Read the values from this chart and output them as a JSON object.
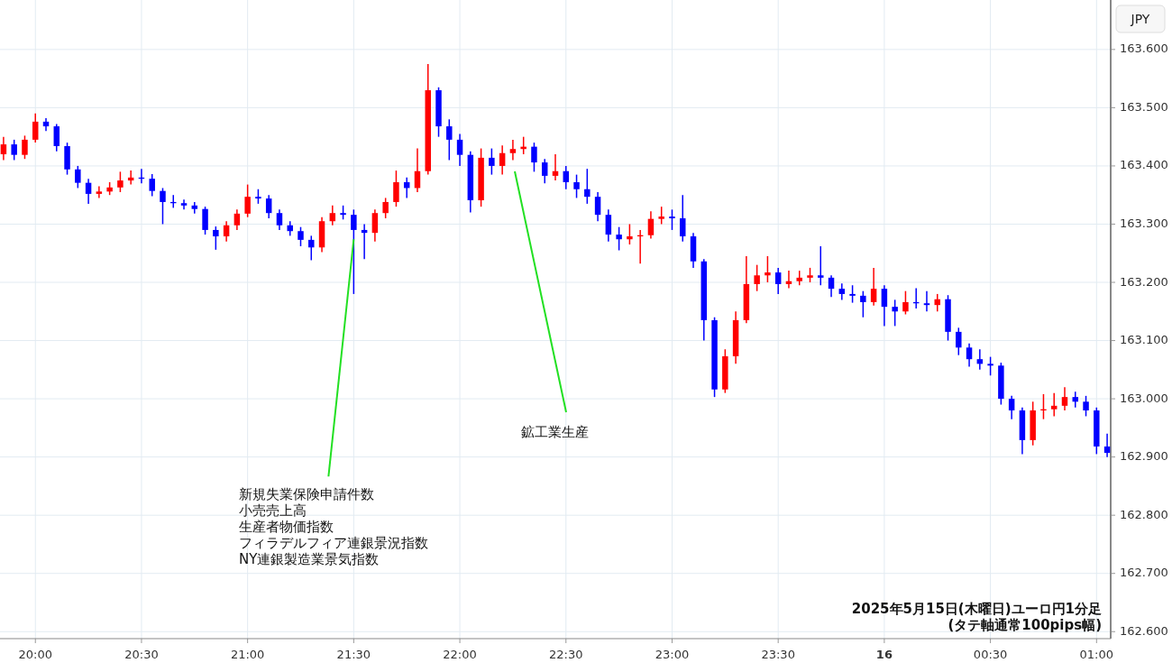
{
  "chart_data": {
    "type": "candlestick",
    "ylabel": "JPY",
    "x": [
      "2025-05-15T19:51",
      "2025-05-15T19:54",
      "2025-05-15T19:57",
      "2025-05-15T20:00",
      "2025-05-15T20:03",
      "2025-05-15T20:06",
      "2025-05-15T20:09",
      "2025-05-15T20:12",
      "2025-05-15T20:15",
      "2025-05-15T20:18",
      "2025-05-15T20:21",
      "2025-05-15T20:24",
      "2025-05-15T20:27",
      "2025-05-15T20:30",
      "2025-05-15T20:33",
      "2025-05-15T20:36",
      "2025-05-15T20:39",
      "2025-05-15T20:42",
      "2025-05-15T20:45",
      "2025-05-15T20:48",
      "2025-05-15T20:51",
      "2025-05-15T20:54",
      "2025-05-15T20:57",
      "2025-05-15T21:00",
      "2025-05-15T21:03",
      "2025-05-15T21:06",
      "2025-05-15T21:09",
      "2025-05-15T21:12",
      "2025-05-15T21:15",
      "2025-05-15T21:18",
      "2025-05-15T21:21",
      "2025-05-15T21:24",
      "2025-05-15T21:27",
      "2025-05-15T21:30",
      "2025-05-15T21:33",
      "2025-05-15T21:36",
      "2025-05-15T21:39",
      "2025-05-15T21:42",
      "2025-05-15T21:45",
      "2025-05-15T21:48",
      "2025-05-15T21:51",
      "2025-05-15T21:54",
      "2025-05-15T21:57",
      "2025-05-15T22:00",
      "2025-05-15T22:03",
      "2025-05-15T22:06",
      "2025-05-15T22:09",
      "2025-05-15T22:12",
      "2025-05-15T22:15",
      "2025-05-15T22:18",
      "2025-05-15T22:21",
      "2025-05-15T22:24",
      "2025-05-15T22:27",
      "2025-05-15T22:30",
      "2025-05-15T22:33",
      "2025-05-15T22:36",
      "2025-05-15T22:39",
      "2025-05-15T22:42",
      "2025-05-15T22:45",
      "2025-05-15T22:48",
      "2025-05-15T22:51",
      "2025-05-15T22:54",
      "2025-05-15T22:57",
      "2025-05-15T23:00",
      "2025-05-15T23:03",
      "2025-05-15T23:06",
      "2025-05-15T23:09",
      "2025-05-15T23:12",
      "2025-05-15T23:15",
      "2025-05-15T23:18",
      "2025-05-15T23:21",
      "2025-05-15T23:24",
      "2025-05-15T23:27",
      "2025-05-15T23:30",
      "2025-05-15T23:33",
      "2025-05-15T23:36",
      "2025-05-15T23:39",
      "2025-05-15T23:42",
      "2025-05-15T23:45",
      "2025-05-15T23:48",
      "2025-05-15T23:51",
      "2025-05-15T23:54",
      "2025-05-15T23:57",
      "2025-05-16T00:00",
      "2025-05-16T00:03",
      "2025-05-16T00:06",
      "2025-05-16T00:09",
      "2025-05-16T00:12",
      "2025-05-16T00:15",
      "2025-05-16T00:18",
      "2025-05-16T00:21",
      "2025-05-16T00:24",
      "2025-05-16T00:27",
      "2025-05-16T00:30",
      "2025-05-16T00:33",
      "2025-05-16T00:36",
      "2025-05-16T00:39",
      "2025-05-16T00:42",
      "2025-05-16T00:45",
      "2025-05-16T00:48",
      "2025-05-16T00:51",
      "2025-05-16T00:54",
      "2025-05-16T00:57",
      "2025-05-16T01:00",
      "2025-05-16T01:03"
    ],
    "ohlc": [
      [
        163.42,
        163.45,
        163.41,
        163.437
      ],
      [
        163.437,
        163.445,
        163.41,
        163.419
      ],
      [
        163.419,
        163.452,
        163.412,
        163.445
      ],
      [
        163.445,
        163.49,
        163.44,
        163.476
      ],
      [
        163.476,
        163.482,
        163.46,
        163.468
      ],
      [
        163.468,
        163.472,
        163.425,
        163.434
      ],
      [
        163.434,
        163.44,
        163.385,
        163.394
      ],
      [
        163.394,
        163.4,
        163.362,
        163.371
      ],
      [
        163.371,
        163.378,
        163.335,
        163.352
      ],
      [
        163.352,
        163.365,
        163.345,
        163.356
      ],
      [
        163.356,
        163.372,
        163.35,
        163.363
      ],
      [
        163.363,
        163.39,
        163.355,
        163.375
      ],
      [
        163.375,
        163.392,
        163.368,
        163.38
      ],
      [
        163.38,
        163.395,
        163.37,
        163.378
      ],
      [
        163.378,
        163.386,
        163.348,
        163.357
      ],
      [
        163.357,
        163.362,
        163.3,
        163.338
      ],
      [
        163.338,
        163.35,
        163.328,
        163.336
      ],
      [
        163.336,
        163.342,
        163.325,
        163.332
      ],
      [
        163.332,
        163.338,
        163.318,
        163.326
      ],
      [
        163.326,
        163.33,
        163.282,
        163.29
      ],
      [
        163.29,
        163.296,
        163.256,
        163.279
      ],
      [
        163.279,
        163.305,
        163.27,
        163.298
      ],
      [
        163.298,
        163.325,
        163.29,
        163.318
      ],
      [
        163.318,
        163.368,
        163.312,
        163.347
      ],
      [
        163.347,
        163.36,
        163.335,
        163.344
      ],
      [
        163.344,
        163.35,
        163.31,
        163.319
      ],
      [
        163.319,
        163.325,
        163.29,
        163.298
      ],
      [
        163.298,
        163.305,
        163.28,
        163.288
      ],
      [
        163.288,
        163.295,
        163.262,
        163.273
      ],
      [
        163.273,
        163.28,
        163.238,
        163.26
      ],
      [
        163.26,
        163.312,
        163.252,
        163.305
      ],
      [
        163.305,
        163.332,
        163.298,
        163.319
      ],
      [
        163.319,
        163.332,
        163.308,
        163.316
      ],
      [
        163.316,
        163.325,
        163.18,
        163.29
      ],
      [
        163.29,
        163.3,
        163.24,
        163.285
      ],
      [
        163.285,
        163.325,
        163.27,
        163.319
      ],
      [
        163.319,
        163.345,
        163.31,
        163.338
      ],
      [
        163.338,
        163.392,
        163.33,
        163.372
      ],
      [
        163.372,
        163.38,
        163.345,
        163.362
      ],
      [
        163.362,
        163.43,
        163.355,
        163.391
      ],
      [
        163.391,
        163.575,
        163.385,
        163.53
      ],
      [
        163.53,
        163.535,
        163.45,
        163.468
      ],
      [
        163.468,
        163.48,
        163.41,
        163.445
      ],
      [
        163.445,
        163.455,
        163.4,
        163.419
      ],
      [
        163.419,
        163.425,
        163.32,
        163.341
      ],
      [
        163.341,
        163.43,
        163.33,
        163.414
      ],
      [
        163.414,
        163.43,
        163.385,
        163.4
      ],
      [
        163.4,
        163.435,
        163.385,
        163.422
      ],
      [
        163.422,
        163.445,
        163.41,
        163.429
      ],
      [
        163.429,
        163.45,
        163.42,
        163.433
      ],
      [
        163.433,
        163.44,
        163.39,
        163.406
      ],
      [
        163.406,
        163.412,
        163.37,
        163.383
      ],
      [
        163.383,
        163.42,
        163.375,
        163.391
      ],
      [
        163.391,
        163.4,
        163.36,
        163.372
      ],
      [
        163.372,
        163.385,
        163.345,
        163.36
      ],
      [
        163.36,
        163.395,
        163.335,
        163.347
      ],
      [
        163.347,
        163.355,
        163.305,
        163.316
      ],
      [
        163.316,
        163.325,
        163.27,
        163.282
      ],
      [
        163.282,
        163.295,
        163.255,
        163.274
      ],
      [
        163.274,
        163.3,
        163.265,
        163.279
      ],
      [
        163.279,
        163.29,
        163.232,
        163.281
      ],
      [
        163.281,
        163.322,
        163.275,
        163.309
      ],
      [
        163.309,
        163.33,
        163.3,
        163.313
      ],
      [
        163.313,
        163.325,
        163.29,
        163.31
      ],
      [
        163.31,
        163.35,
        163.27,
        163.279
      ],
      [
        163.279,
        163.285,
        163.225,
        163.236
      ],
      [
        163.236,
        163.24,
        163.1,
        163.135
      ],
      [
        163.135,
        163.14,
        163.003,
        163.016
      ],
      [
        163.016,
        163.085,
        163.01,
        163.073
      ],
      [
        163.073,
        163.15,
        163.06,
        163.135
      ],
      [
        163.135,
        163.245,
        163.13,
        163.197
      ],
      [
        163.197,
        163.23,
        163.185,
        163.212
      ],
      [
        163.212,
        163.245,
        163.2,
        163.217
      ],
      [
        163.217,
        163.225,
        163.18,
        163.197
      ],
      [
        163.197,
        163.22,
        163.19,
        163.202
      ],
      [
        163.202,
        163.22,
        163.195,
        163.208
      ],
      [
        163.208,
        163.225,
        163.2,
        163.212
      ],
      [
        163.212,
        163.262,
        163.195,
        163.208
      ],
      [
        163.208,
        163.212,
        163.175,
        163.189
      ],
      [
        163.189,
        163.198,
        163.17,
        163.18
      ],
      [
        163.18,
        163.195,
        163.165,
        163.177
      ],
      [
        163.177,
        163.185,
        163.14,
        163.166
      ],
      [
        163.166,
        163.225,
        163.16,
        163.189
      ],
      [
        163.189,
        163.195,
        163.125,
        163.158
      ],
      [
        163.158,
        163.17,
        163.125,
        163.15
      ],
      [
        163.15,
        163.185,
        163.145,
        163.166
      ],
      [
        163.166,
        163.19,
        163.155,
        163.164
      ],
      [
        163.164,
        163.185,
        163.15,
        163.161
      ],
      [
        163.161,
        163.18,
        163.15,
        163.171
      ],
      [
        163.171,
        163.178,
        163.1,
        163.115
      ],
      [
        163.115,
        163.122,
        163.075,
        163.088
      ],
      [
        163.088,
        163.095,
        163.055,
        163.068
      ],
      [
        163.068,
        163.085,
        163.05,
        163.06
      ],
      [
        163.06,
        163.072,
        163.04,
        163.057
      ],
      [
        163.057,
        163.062,
        162.99,
        163.0
      ],
      [
        163.0,
        163.005,
        162.965,
        162.98
      ],
      [
        162.98,
        162.985,
        162.905,
        162.929
      ],
      [
        162.929,
        162.995,
        162.92,
        162.98
      ],
      [
        162.98,
        163.008,
        162.965,
        162.982
      ],
      [
        162.982,
        163.01,
        162.97,
        162.988
      ],
      [
        162.988,
        163.02,
        162.98,
        163.003
      ],
      [
        163.003,
        163.012,
        162.985,
        162.995
      ],
      [
        162.995,
        163.005,
        162.97,
        162.98
      ],
      [
        162.98,
        162.985,
        162.905,
        162.918
      ],
      [
        162.918,
        162.94,
        162.9,
        162.907
      ]
    ],
    "xlim": [
      "2025-05-15T19:50",
      "2025-05-16T01:04"
    ],
    "ylim": [
      162.588,
      163.685
    ],
    "xticks": [
      {
        "value": "2025-05-15T20:00",
        "label": "20:00"
      },
      {
        "value": "2025-05-15T20:30",
        "label": "20:30"
      },
      {
        "value": "2025-05-15T21:00",
        "label": "21:00"
      },
      {
        "value": "2025-05-15T21:30",
        "label": "21:30"
      },
      {
        "value": "2025-05-15T22:00",
        "label": "22:00"
      },
      {
        "value": "2025-05-15T22:30",
        "label": "22:30"
      },
      {
        "value": "2025-05-15T23:00",
        "label": "23:00"
      },
      {
        "value": "2025-05-15T23:30",
        "label": "23:30"
      },
      {
        "value": "2025-05-16T00:00",
        "label": "16"
      },
      {
        "value": "2025-05-16T00:30",
        "label": "00:30"
      },
      {
        "value": "2025-05-16T01:00",
        "label": "01:00"
      }
    ],
    "yticks": [
      {
        "value": 162.6,
        "label": "162.600"
      },
      {
        "value": 162.7,
        "label": "162.700"
      },
      {
        "value": 162.8,
        "label": "162.800"
      },
      {
        "value": 162.9,
        "label": "162.900"
      },
      {
        "value": 163.0,
        "label": "163.000"
      },
      {
        "value": 163.1,
        "label": "163.100"
      },
      {
        "value": 163.2,
        "label": "163.200"
      },
      {
        "value": 163.3,
        "label": "163.300"
      },
      {
        "value": 163.4,
        "label": "163.400"
      },
      {
        "value": 163.5,
        "label": "163.500"
      },
      {
        "value": 163.6,
        "label": "163.600"
      }
    ],
    "grid": true,
    "annotations": [
      {
        "text": "新規失業保険申請件数",
        "x": "2025-05-15T21:30",
        "y": 163.274
      },
      "小売売上高",
      "生産者物価指数",
      "フィラデルフィア連銀景況指数",
      "NY連銀製造業景気指数",
      "鉱工業生産",
      "2025年5月15日(木曜日)ユーロ円1分足",
      "(タテ軸通常100pips幅)"
    ]
  }
}
